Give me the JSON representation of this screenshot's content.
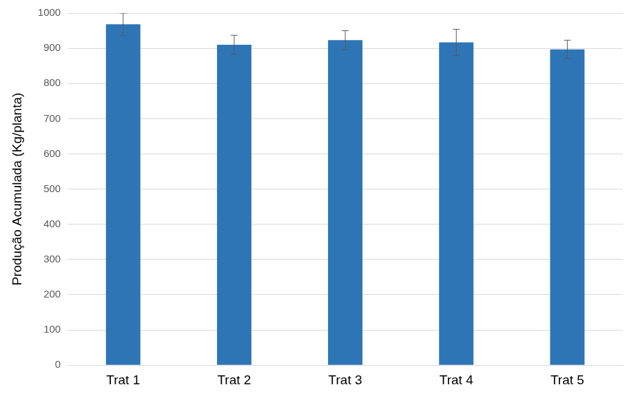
{
  "chart_data": {
    "type": "bar",
    "y_label": "Produção Acumulada (Kg/planta)",
    "categories": [
      "Trat 1",
      "Trat 2",
      "Trat 3",
      "Trat 4",
      "Trat 5"
    ],
    "values": [
      968,
      910,
      923,
      917,
      897
    ],
    "errors": [
      32,
      27,
      27,
      37,
      26
    ],
    "color": "#2e75b6",
    "ylim": [
      0,
      1000
    ],
    "yticks": [
      0,
      100,
      200,
      300,
      400,
      500,
      600,
      700,
      800,
      900,
      1000
    ],
    "grid": true
  }
}
